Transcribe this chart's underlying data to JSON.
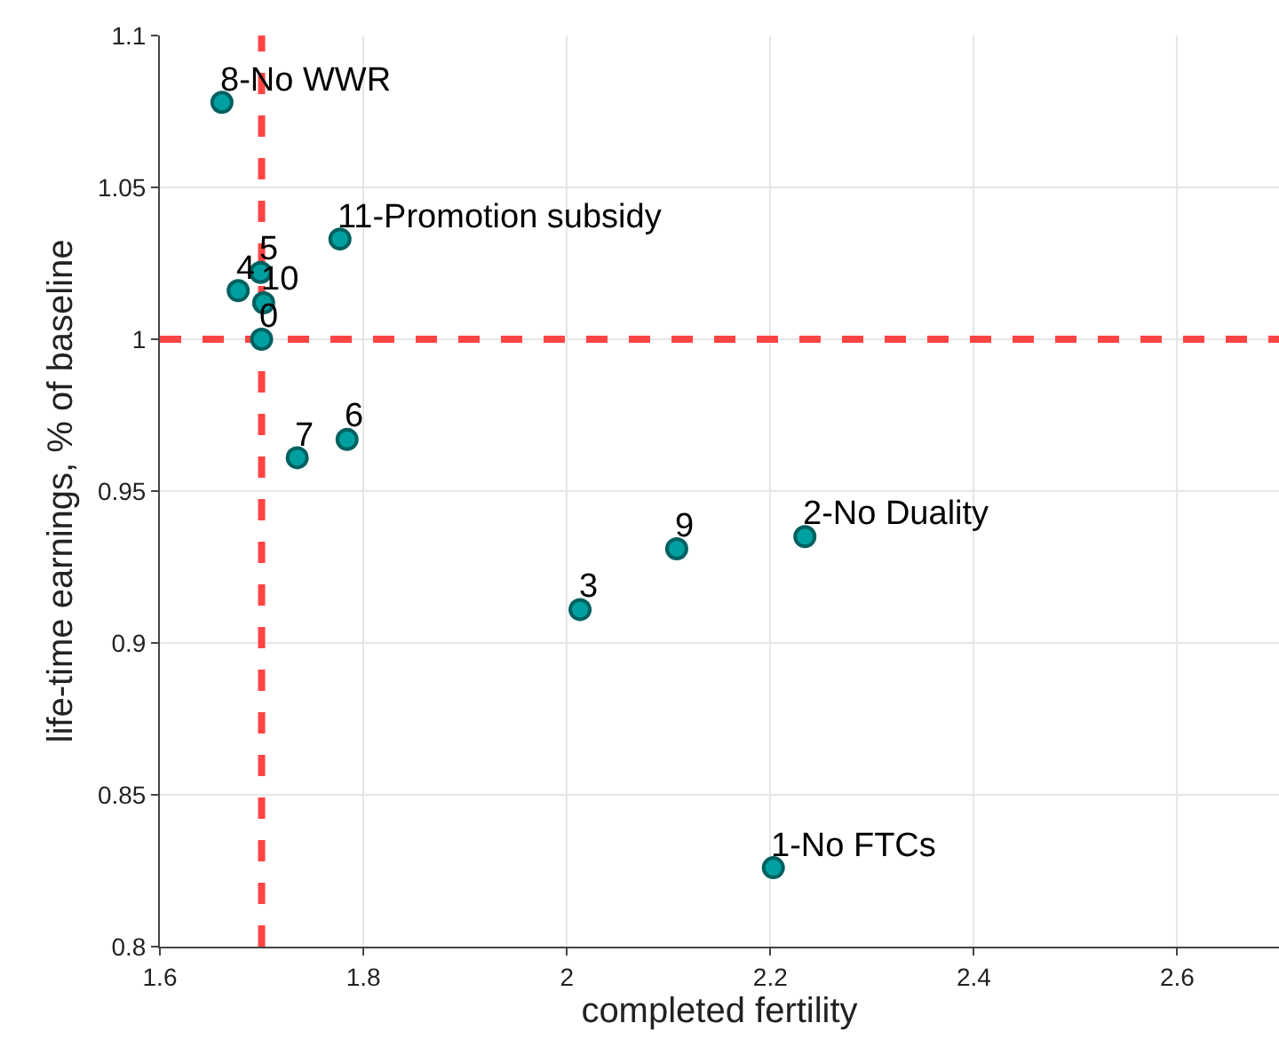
{
  "chart_data": {
    "type": "scatter",
    "xlabel": "completed fertility",
    "ylabel": "life-time earnings, % of baseline",
    "x": [
      1.7,
      2.203,
      2.234,
      2.013,
      1.677,
      1.699,
      1.784,
      1.735,
      1.661,
      2.108,
      1.702,
      1.777
    ],
    "values": [
      1.0,
      0.826,
      0.935,
      0.911,
      1.016,
      1.022,
      0.967,
      0.961,
      1.078,
      0.931,
      1.012,
      1.033
    ],
    "color": "#00a0a0",
    "marker": "circle",
    "grid": true,
    "xlim": [
      1.6,
      2.7
    ],
    "xticks": [
      1.6,
      1.8,
      2,
      2.2,
      2.4,
      2.6
    ],
    "ylim": [
      0.8,
      1.1
    ],
    "yticks": [
      0.8,
      0.85,
      0.9,
      0.95,
      1,
      1.05,
      1.1
    ],
    "ref_lines": [
      {
        "axis": "x",
        "value": 1.7,
        "color": "#ff4444",
        "line_style": "dashed"
      },
      {
        "axis": "y",
        "value": 1,
        "color": "#ff4444",
        "line_style": "dashed"
      }
    ],
    "annotations": [
      {
        "text": "0",
        "x": 1.7,
        "y": 1.0
      },
      {
        "text": "1-No FTCs",
        "x": 2.203,
        "y": 0.826
      },
      {
        "text": "2-No Duality",
        "x": 2.234,
        "y": 0.935
      },
      {
        "text": "3",
        "x": 2.013,
        "y": 0.911
      },
      {
        "text": "4",
        "x": 1.677,
        "y": 1.016
      },
      {
        "text": "5",
        "x": 1.699,
        "y": 1.022
      },
      {
        "text": "6",
        "x": 1.784,
        "y": 0.967
      },
      {
        "text": "7",
        "x": 1.735,
        "y": 0.961
      },
      {
        "text": "8-No WWR",
        "x": 1.661,
        "y": 1.078
      },
      {
        "text": "9",
        "x": 2.108,
        "y": 0.931
      },
      {
        "text": "10",
        "x": 1.702,
        "y": 1.012
      },
      {
        "text": "11-Promotion subsidy",
        "x": 1.777,
        "y": 1.033
      }
    ]
  }
}
